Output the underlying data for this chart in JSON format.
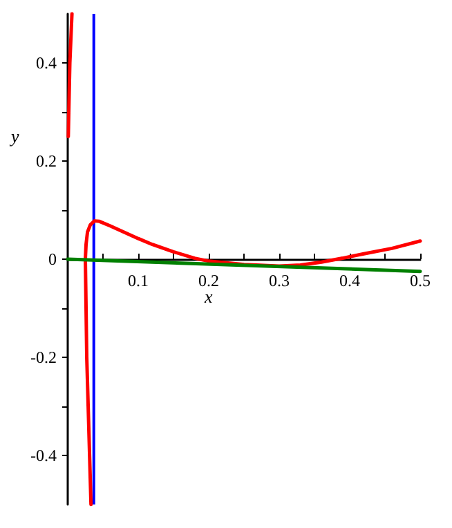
{
  "chart_data": {
    "type": "line",
    "xlabel": "x",
    "ylabel": "y",
    "xlim": [
      0,
      0.5
    ],
    "ylim": [
      -0.5,
      0.5
    ],
    "xticks": [
      {
        "value": 0.05,
        "label": null
      },
      0.1,
      {
        "value": 0.15,
        "label": null
      },
      0.2,
      {
        "value": 0.25,
        "label": null
      },
      0.3,
      {
        "value": 0.35,
        "label": null
      },
      0.4,
      {
        "value": 0.45,
        "label": null
      },
      0.5
    ],
    "yticks": [
      -0.4,
      {
        "value": -0.3,
        "label": null
      },
      -0.2,
      {
        "value": -0.1,
        "label": null
      },
      0,
      {
        "value": 0.1,
        "label": null
      },
      0.2,
      {
        "value": 0.3,
        "label": null
      },
      0.4
    ],
    "series": [
      {
        "color": "#ff0000",
        "x": [
          0.0008,
          0.0015,
          0.003,
          0.006
        ],
        "values": [
          0.25,
          0.3,
          0.4,
          0.5
        ]
      },
      {
        "color": "#ff0000",
        "x": [
          0.033,
          0.031,
          0.029,
          0.027,
          0.026,
          0.025,
          0.026,
          0.028,
          0.032,
          0.038,
          0.045,
          0.06,
          0.08,
          0.1,
          0.12,
          0.15,
          0.18,
          0.2,
          0.25,
          0.3,
          0.33,
          0.36,
          0.39,
          0.42,
          0.46,
          0.5
        ],
        "values": [
          -0.5,
          -0.4,
          -0.3,
          -0.2,
          -0.1,
          0,
          0.03,
          0.055,
          0.07,
          0.078,
          0.077,
          0.068,
          0.055,
          0.042,
          0.03,
          0.015,
          0.002,
          -0.004,
          -0.011,
          -0.014,
          -0.012,
          -0.006,
          0.002,
          0.011,
          0.022,
          0.037
        ]
      },
      {
        "color": "#008000",
        "x": [
          0,
          0.5
        ],
        "values": [
          0,
          -0.025
        ]
      }
    ],
    "ref_lines": [
      {
        "axis": "x",
        "value": 0.037,
        "color": "#0000ff"
      }
    ],
    "marker": "none",
    "line_style": "solid"
  }
}
